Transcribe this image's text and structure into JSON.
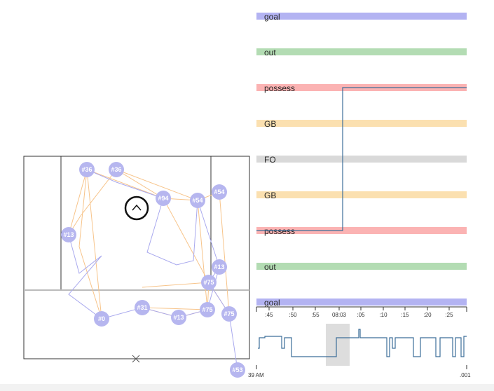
{
  "colors": {
    "goal": "#b3b3f2",
    "out": "#b3dcb3",
    "possess": "#fbb3b3",
    "GB": "#fbe0b0",
    "FO": "#d9d9d9",
    "player_fill": "#b6b6ef",
    "path_orange": "#f7c48a",
    "path_purple": "#a9a9ee",
    "step_line": "#3c6e99",
    "brush": "#dddddd",
    "field_line": "#333333"
  },
  "lanes": [
    {
      "label": "goal",
      "type": "goal"
    },
    {
      "label": "out",
      "type": "out"
    },
    {
      "label": "possess",
      "type": "possess"
    },
    {
      "label": "GB",
      "type": "GB"
    },
    {
      "label": "FO",
      "type": "FO"
    },
    {
      "label": "GB",
      "type": "GB"
    },
    {
      "label": "possess",
      "type": "possess"
    },
    {
      "label": "out",
      "type": "out"
    },
    {
      "label": "goal",
      "type": "goal"
    }
  ],
  "axis": {
    "ticks": [
      ":45",
      ":50",
      ":55",
      "08:03",
      ":05",
      ":10",
      ":15",
      ":20",
      ":25"
    ],
    "bottom_left": "39 AM",
    "bottom_right": ".001"
  },
  "players": [
    "#36",
    "#36",
    "#94",
    "#54",
    "#54",
    "#13",
    "#13",
    "#75",
    "#31",
    "#75",
    "#0",
    "#13",
    "#75",
    "#53"
  ],
  "field": {
    "ball_icon": "chevron-up-icon",
    "marker_icon": "x-mark-icon"
  }
}
